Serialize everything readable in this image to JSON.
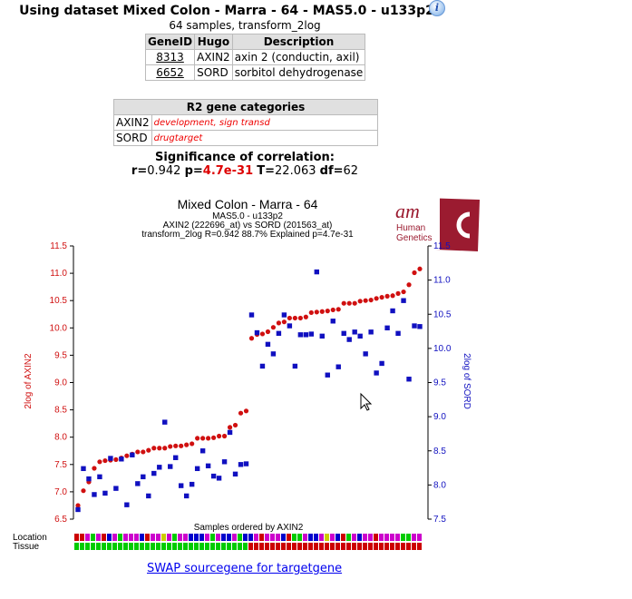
{
  "header": {
    "title": "Using dataset Mixed Colon - Marra - 64 - MAS5.0 - u133p2",
    "info_icon": "info-icon",
    "subtitle": "64 samples, transform_2log"
  },
  "genes": {
    "columns": [
      "GeneID",
      "Hugo",
      "Description"
    ],
    "rows": [
      [
        "8313",
        "AXIN2",
        "axin 2 (conductin, axil)"
      ],
      [
        "6652",
        "SORD",
        "sorbitol dehydrogenase"
      ]
    ]
  },
  "categories": {
    "title": "R2 gene categories",
    "rows": [
      [
        "AXIN2",
        "development, sign transd"
      ],
      [
        "SORD",
        "drugtarget"
      ]
    ]
  },
  "significance": {
    "heading": "Significance of correlation:",
    "r_label": "r=",
    "r": "0.942",
    "p_label": "p=",
    "p": "4.7e-31",
    "t_label": "T=",
    "t": "22.063",
    "df_label": "df=",
    "df": "62"
  },
  "logo": {
    "text": "am Human Genetics",
    "color": "#9b1b30"
  },
  "chart_data": {
    "type": "scatter",
    "title": "Mixed Colon  - Marra - 64",
    "subtitle1": "MAS5.0 - u133p2",
    "subtitle2": "AXIN2 (222696_at) vs SORD (201563_at)",
    "subtitle3": "transform_2log R=0.942 88.7% Explained p=4.7e-31",
    "xlabel": "Samples ordered by AXIN2",
    "ylabel_left": "2log of AXIN2",
    "ylabel_right": "2log of SORD",
    "ylim_left": [
      6.5,
      11.5
    ],
    "ylim_right": [
      7.5,
      11.5
    ],
    "yticks_left": [
      "6.5",
      "7.0",
      "7.5",
      "8.0",
      "8.5",
      "9.0",
      "9.5",
      "10.0",
      "10.5",
      "11.0",
      "11.5"
    ],
    "yticks_right": [
      "7.5",
      "8.0",
      "8.5",
      "9.0",
      "9.5",
      "10.0",
      "10.5",
      "11.0",
      "11.5"
    ],
    "series": [
      {
        "name": "AXIN2",
        "axis": "left",
        "color": "#d01010",
        "marker": "circle",
        "values": [
          6.75,
          7.02,
          7.18,
          7.43,
          7.55,
          7.57,
          7.58,
          7.59,
          7.62,
          7.66,
          7.69,
          7.73,
          7.73,
          7.76,
          7.8,
          7.8,
          7.8,
          7.83,
          7.84,
          7.84,
          7.86,
          7.88,
          7.98,
          7.98,
          7.98,
          7.99,
          8.02,
          8.02,
          8.18,
          8.22,
          8.44,
          8.48,
          9.81,
          9.88,
          9.89,
          9.93,
          10.01,
          10.09,
          10.11,
          10.18,
          10.18,
          10.18,
          10.2,
          10.28,
          10.29,
          10.3,
          10.31,
          10.33,
          10.34,
          10.45,
          10.45,
          10.45,
          10.49,
          10.5,
          10.51,
          10.54,
          10.56,
          10.58,
          10.59,
          10.63,
          10.66,
          10.79,
          11.01,
          11.08
        ]
      },
      {
        "name": "SORD",
        "axis": "right",
        "color": "#1010c0",
        "marker": "square",
        "values": [
          7.64,
          8.24,
          8.09,
          7.86,
          8.12,
          7.88,
          8.39,
          7.95,
          8.38,
          7.71,
          8.44,
          8.02,
          8.12,
          7.84,
          8.17,
          8.26,
          8.92,
          8.27,
          8.4,
          7.99,
          7.84,
          8.01,
          8.24,
          8.5,
          8.28,
          8.13,
          8.1,
          8.34,
          8.77,
          8.16,
          8.3,
          8.31,
          10.49,
          10.23,
          9.74,
          10.06,
          9.92,
          10.22,
          10.49,
          10.33,
          9.74,
          10.2,
          10.2,
          10.21,
          11.12,
          10.18,
          9.61,
          10.4,
          9.73,
          10.22,
          10.13,
          10.24,
          10.18,
          9.92,
          10.24,
          9.64,
          9.78,
          10.3,
          10.55,
          10.22,
          10.7,
          9.55,
          10.33,
          10.32
        ]
      }
    ],
    "tracks": [
      {
        "label": "Location",
        "colors": "rrmgmrbmgmmmbrmmymgmmbbbmgmbbmgbbmrmmmbrggmbbmymbrgmbmmrmmmmggmm"
      },
      {
        "label": "Tissue",
        "colors": "ggggggggggggggggggggggggggggggggrrrrrrrrrrrrrrrrrrrrrrrrrrrrrrrr"
      }
    ],
    "track_palette": {
      "r": "#cc0000",
      "g": "#00cc00",
      "m": "#cc00cc",
      "b": "#0000cc",
      "y": "#cccc00"
    }
  },
  "swap_link": "SWAP sourcegene for targetgene"
}
